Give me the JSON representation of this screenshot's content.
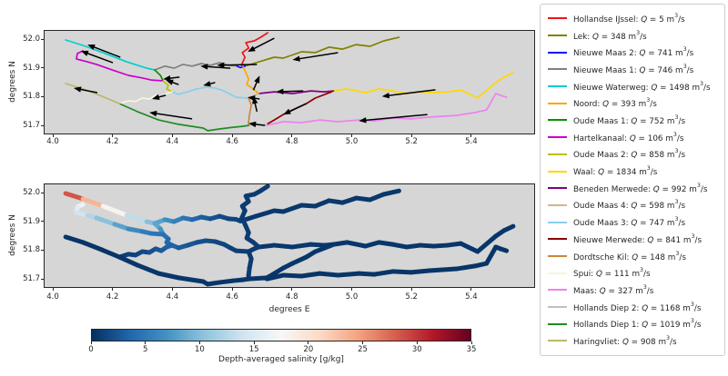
{
  "chart_data": {
    "type": "line",
    "description": "Two map-style subplots of the Rhine-Meuse river network: top shows channels colored per branch with flow-direction arrows, bottom shows depth-averaged salinity along the channels",
    "xlim": [
      3.968,
      5.612
    ],
    "ylim": [
      51.685,
      52.029
    ],
    "x_tick_labels": [
      "4.0",
      "4.2",
      "4.4",
      "4.6",
      "4.8",
      "5.0",
      "5.2",
      "5.4"
    ],
    "x_tick_values": [
      4.0,
      4.2,
      4.4,
      4.6,
      4.8,
      5.0,
      5.2,
      5.4
    ],
    "y_tick_labels": [
      "52.0",
      "51.9",
      "51.8",
      "51.7"
    ],
    "y_tick_values": [
      52.0,
      51.9,
      51.8,
      51.7
    ],
    "subplots": [
      {
        "id": "flow",
        "ylabel": "degrees N",
        "xlabel": ""
      },
      {
        "id": "salinity",
        "ylabel": "degrees N",
        "xlabel": "degrees E"
      }
    ],
    "rivers": [
      {
        "name": "Hollandse IJssel",
        "q": "5",
        "color": "#f01515",
        "sal": 0.7,
        "points": [
          [
            4.628,
            51.912
          ],
          [
            4.64,
            51.94
          ],
          [
            4.631,
            51.956
          ],
          [
            4.652,
            51.972
          ],
          [
            4.643,
            51.991
          ],
          [
            4.671,
            51.997
          ],
          [
            4.692,
            52.009
          ],
          [
            4.716,
            52.025
          ]
        ]
      },
      {
        "name": "Lek",
        "q": "348",
        "color": "#808000",
        "sal": 0.5,
        "points": [
          [
            4.64,
            51.909
          ],
          [
            4.677,
            51.921
          ],
          [
            4.738,
            51.94
          ],
          [
            4.768,
            51.937
          ],
          [
            4.829,
            51.959
          ],
          [
            4.875,
            51.956
          ],
          [
            4.921,
            51.975
          ],
          [
            4.966,
            51.968
          ],
          [
            5.012,
            51.984
          ],
          [
            5.058,
            51.978
          ],
          [
            5.104,
            51.997
          ],
          [
            5.155,
            52.009
          ]
        ]
      },
      {
        "name": "Nieuwe Maas 2",
        "q": "741",
        "color": "#0d0dff",
        "sal": [
          1.1,
          1.0,
          0.9
        ],
        "points": [
          [
            4.61,
            51.91
          ],
          [
            4.625,
            51.904
          ],
          [
            4.64,
            51.909
          ]
        ]
      },
      {
        "name": "Nieuwe Maas 1",
        "q": "746",
        "color": "#7f7f7f",
        "sal": [
          9,
          7,
          6,
          5,
          4,
          3.2,
          2.5,
          1.9,
          1.4,
          1.1
        ],
        "points": [
          [
            4.338,
            51.896
          ],
          [
            4.372,
            51.909
          ],
          [
            4.402,
            51.902
          ],
          [
            4.433,
            51.915
          ],
          [
            4.463,
            51.909
          ],
          [
            4.494,
            51.918
          ],
          [
            4.524,
            51.912
          ],
          [
            4.555,
            51.921
          ],
          [
            4.585,
            51.912
          ],
          [
            4.61,
            51.91
          ]
        ]
      },
      {
        "name": "Nieuwe Waterweg",
        "q": "1498",
        "color": "#00ced1",
        "sal": [
          31,
          26,
          21,
          15,
          11,
          9
        ],
        "points": [
          [
            4.04,
            52.0
          ],
          [
            4.098,
            51.981
          ],
          [
            4.165,
            51.956
          ],
          [
            4.244,
            51.924
          ],
          [
            4.311,
            51.902
          ],
          [
            4.338,
            51.896
          ]
        ]
      },
      {
        "name": "Noord",
        "q": "393",
        "color": "#ffa500",
        "sal": 0.8,
        "points": [
          [
            4.634,
            51.906
          ],
          [
            4.643,
            51.886
          ],
          [
            4.652,
            51.864
          ],
          [
            4.646,
            51.845
          ],
          [
            4.668,
            51.83
          ],
          [
            4.686,
            51.814
          ]
        ]
      },
      {
        "name": "Oude Maas 1",
        "q": "752",
        "color": "#089000",
        "sal": [
          9,
          7.5,
          6.5
        ],
        "points": [
          [
            4.338,
            51.896
          ],
          [
            4.357,
            51.877
          ],
          [
            4.366,
            51.858
          ]
        ]
      },
      {
        "name": "Hartelkanaal",
        "q": "106",
        "color": "#cc00cc",
        "sal": [
          17,
          16,
          15,
          13,
          11.5,
          9,
          7,
          5.5,
          5,
          4.5
        ],
        "points": [
          [
            4.098,
            51.962
          ],
          [
            4.079,
            51.953
          ],
          [
            4.076,
            51.934
          ],
          [
            4.113,
            51.924
          ],
          [
            4.143,
            51.915
          ],
          [
            4.204,
            51.893
          ],
          [
            4.25,
            51.877
          ],
          [
            4.296,
            51.868
          ],
          [
            4.326,
            51.861
          ],
          [
            4.366,
            51.858
          ]
        ]
      },
      {
        "name": "Oude Maas 2",
        "q": "858",
        "color": "#bfbf00",
        "sal": [
          4.5,
          4,
          3.8,
          3.5
        ],
        "points": [
          [
            4.366,
            51.858
          ],
          [
            4.384,
            51.842
          ],
          [
            4.378,
            51.83
          ],
          [
            4.396,
            51.82
          ]
        ]
      },
      {
        "name": "Waal",
        "q": "1834",
        "color": "#ffd700",
        "sal": 0.4,
        "points": [
          [
            4.936,
            51.823
          ],
          [
            4.982,
            51.83
          ],
          [
            5.043,
            51.817
          ],
          [
            5.088,
            51.83
          ],
          [
            5.134,
            51.823
          ],
          [
            5.18,
            51.814
          ],
          [
            5.226,
            51.82
          ],
          [
            5.271,
            51.817
          ],
          [
            5.317,
            51.82
          ],
          [
            5.362,
            51.826
          ],
          [
            5.418,
            51.798
          ],
          [
            5.479,
            51.852
          ],
          [
            5.506,
            51.871
          ],
          [
            5.537,
            51.886
          ]
        ]
      },
      {
        "name": "Beneden Merwede",
        "q": "992",
        "color": "#800080",
        "sal": 0.5,
        "points": [
          [
            4.686,
            51.814
          ],
          [
            4.738,
            51.82
          ],
          [
            4.799,
            51.814
          ],
          [
            4.86,
            51.823
          ],
          [
            4.905,
            51.82
          ],
          [
            4.936,
            51.823
          ]
        ]
      },
      {
        "name": "Oude Maas 4",
        "q": "598",
        "color": "#d2b48c",
        "sal": 0.8,
        "points": [
          [
            4.652,
            51.798
          ],
          [
            4.671,
            51.808
          ],
          [
            4.686,
            51.814
          ]
        ]
      },
      {
        "name": "Oude Maas 3",
        "q": "747",
        "color": "#87ceeb",
        "sal": [
          3.5,
          3,
          2.6,
          2.2,
          1.9,
          1.6,
          1.3,
          1.1,
          1.0,
          0.9
        ],
        "points": [
          [
            4.396,
            51.82
          ],
          [
            4.418,
            51.811
          ],
          [
            4.448,
            51.82
          ],
          [
            4.479,
            51.83
          ],
          [
            4.509,
            51.836
          ],
          [
            4.54,
            51.833
          ],
          [
            4.57,
            51.823
          ],
          [
            4.591,
            51.811
          ],
          [
            4.61,
            51.801
          ],
          [
            4.652,
            51.798
          ]
        ]
      },
      {
        "name": "Nieuwe Merwede",
        "q": "841",
        "color": "#8b0000",
        "sal": 0.4,
        "points": [
          [
            4.93,
            51.82
          ],
          [
            4.875,
            51.798
          ],
          [
            4.845,
            51.779
          ],
          [
            4.799,
            51.757
          ],
          [
            4.768,
            51.741
          ],
          [
            4.738,
            51.722
          ],
          [
            4.713,
            51.707
          ]
        ]
      },
      {
        "name": "Dordtsche Kil",
        "q": "148",
        "color": "#cd853f",
        "sal": 0.7,
        "points": [
          [
            4.652,
            51.798
          ],
          [
            4.661,
            51.773
          ],
          [
            4.655,
            51.741
          ],
          [
            4.652,
            51.716
          ],
          [
            4.652,
            51.703
          ]
        ]
      },
      {
        "name": "Spui",
        "q": "111",
        "color": "#f5f5dc",
        "sal": [
          0.8,
          1.0,
          1.2,
          1.5,
          1.8,
          2.2,
          2.6,
          3.0,
          3.5
        ],
        "points": [
          [
            4.22,
            51.779
          ],
          [
            4.25,
            51.789
          ],
          [
            4.274,
            51.786
          ],
          [
            4.296,
            51.798
          ],
          [
            4.32,
            51.795
          ],
          [
            4.341,
            51.808
          ],
          [
            4.36,
            51.801
          ],
          [
            4.378,
            51.814
          ],
          [
            4.396,
            51.82
          ]
        ]
      },
      {
        "name": "Maas",
        "q": "327",
        "color": "#ee82ee",
        "sal": 0.3,
        "points": [
          [
            4.713,
            51.703
          ],
          [
            4.768,
            51.716
          ],
          [
            4.829,
            51.713
          ],
          [
            4.89,
            51.722
          ],
          [
            4.951,
            51.716
          ],
          [
            5.021,
            51.722
          ],
          [
            5.073,
            51.719
          ],
          [
            5.134,
            51.729
          ],
          [
            5.195,
            51.726
          ],
          [
            5.256,
            51.732
          ],
          [
            5.347,
            51.738
          ],
          [
            5.409,
            51.748
          ],
          [
            5.448,
            51.757
          ],
          [
            5.479,
            51.814
          ],
          [
            5.494,
            51.808
          ],
          [
            5.515,
            51.801
          ]
        ]
      },
      {
        "name": "Hollands Diep 2",
        "q": "1168",
        "color": "#c0c0c0",
        "sal": 0.4,
        "points": [
          [
            4.652,
            51.703
          ],
          [
            4.713,
            51.707
          ]
        ]
      },
      {
        "name": "Hollands Diep 1",
        "q": "1019",
        "color": "#228b22",
        "sal": 0.4,
        "points": [
          [
            4.22,
            51.779
          ],
          [
            4.28,
            51.751
          ],
          [
            4.351,
            51.722
          ],
          [
            4.418,
            51.707
          ],
          [
            4.5,
            51.694
          ],
          [
            4.515,
            51.685
          ],
          [
            4.555,
            51.691
          ],
          [
            4.601,
            51.697
          ],
          [
            4.631,
            51.7
          ],
          [
            4.652,
            51.703
          ]
        ]
      },
      {
        "name": "Haringvliet",
        "q": "908",
        "color": "#bdb76b",
        "sal": 0.3,
        "points": [
          [
            4.04,
            51.849
          ],
          [
            4.098,
            51.83
          ],
          [
            4.162,
            51.804
          ],
          [
            4.22,
            51.779
          ]
        ]
      }
    ],
    "arrows": [
      [
        4.223,
        51.94,
        4.113,
        51.984
      ],
      [
        4.198,
        51.921,
        4.091,
        51.962
      ],
      [
        4.146,
        51.817,
        4.067,
        51.833
      ],
      [
        4.463,
        51.726,
        4.32,
        51.748
      ],
      [
        4.68,
        51.915,
        4.546,
        51.912
      ],
      [
        4.591,
        51.902,
        4.491,
        51.909
      ],
      [
        4.951,
        51.956,
        4.799,
        51.931
      ],
      [
        4.738,
        52.006,
        4.649,
        51.959
      ],
      [
        4.668,
        51.826,
        4.689,
        51.876
      ],
      [
        4.835,
        51.823,
        4.744,
        51.82
      ],
      [
        5.277,
        51.827,
        5.098,
        51.804
      ],
      [
        5.25,
        51.741,
        5.021,
        51.719
      ],
      [
        4.845,
        51.779,
        4.768,
        51.741
      ],
      [
        4.68,
        51.751,
        4.668,
        51.804
      ],
      [
        4.689,
        51.795,
        4.649,
        51.801
      ],
      [
        4.707,
        51.703,
        4.652,
        51.71
      ],
      [
        4.54,
        51.852,
        4.5,
        51.842
      ],
      [
        4.375,
        51.808,
        4.329,
        51.795
      ],
      [
        4.418,
        51.845,
        4.375,
        51.861
      ],
      [
        4.421,
        51.871,
        4.366,
        51.864
      ]
    ],
    "colorbar": {
      "label": "Depth-averaged salinity [g/kg]",
      "tick_labels": [
        "0",
        "5",
        "10",
        "15",
        "20",
        "25",
        "30",
        "35"
      ],
      "tick_values": [
        0,
        5,
        10,
        15,
        20,
        25,
        30,
        35
      ],
      "vmin": 0,
      "vmax": 35,
      "cmap": [
        "#053061",
        "#2166ac",
        "#4393c3",
        "#92c5de",
        "#d1e5f0",
        "#f7f7f7",
        "#fddbc7",
        "#f4a582",
        "#d6604d",
        "#b2182b",
        "#67001f"
      ]
    }
  },
  "legend_format": {
    "separator": ": ",
    "q_symbol": "Q",
    "equals": " = ",
    "unit_base": "m",
    "unit_exponent": "3",
    "unit_suffix": "/s"
  },
  "style": {
    "plot_bg": "#d6d6d6",
    "arrow_color": "#000000",
    "text_color": "#262626"
  }
}
